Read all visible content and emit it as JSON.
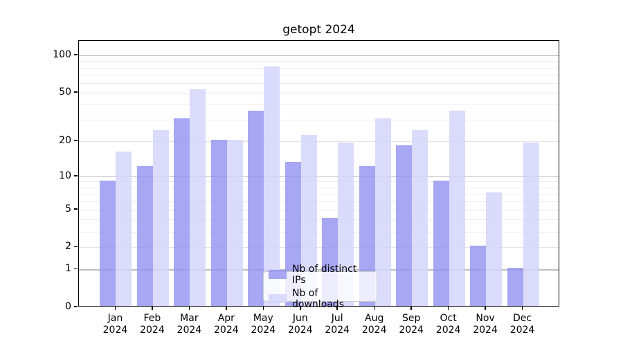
{
  "title": "getopt 2024",
  "chart_data": {
    "type": "bar",
    "title": "getopt 2024",
    "categories": [
      "Jan 2024",
      "Feb 2024",
      "Mar 2024",
      "Apr 2024",
      "May 2024",
      "Jun 2024",
      "Jul 2024",
      "Aug 2024",
      "Sep 2024",
      "Oct 2024",
      "Nov 2024",
      "Dec 2024"
    ],
    "x_tick_line1": [
      "Jan",
      "Feb",
      "Mar",
      "Apr",
      "May",
      "Jun",
      "Jul",
      "Aug",
      "Sep",
      "Oct",
      "Nov",
      "Dec"
    ],
    "x_tick_line2": "2024",
    "series": [
      {
        "name": "Nb of distinct IPs",
        "color": "#9494f0",
        "opacity": 0.82,
        "values": [
          9,
          12,
          30,
          20,
          35,
          13,
          4,
          12,
          18,
          9,
          2,
          1
        ]
      },
      {
        "name": "Nb of downloads",
        "color": "#d5d5fb",
        "opacity": 0.85,
        "values": [
          16,
          24,
          52,
          20,
          80,
          22,
          19,
          30,
          24,
          35,
          7,
          19
        ]
      }
    ],
    "y_scale": "log10(value+1)",
    "ylim": [
      0,
      131
    ],
    "y_tick_labels": [
      0,
      1,
      2,
      5,
      10,
      20,
      50,
      100
    ],
    "y_gridlines_strong": [
      1,
      10,
      100
    ],
    "y_gridlines_mid": [
      2,
      5,
      20,
      50
    ],
    "y_gridlines_faint": [
      3,
      4,
      6,
      7,
      8,
      9,
      30,
      40,
      60,
      70,
      80,
      90
    ],
    "grid": "on",
    "legend_position": "lower-center-inside",
    "background_color": "#ffffff",
    "spine_color": "#000000"
  }
}
